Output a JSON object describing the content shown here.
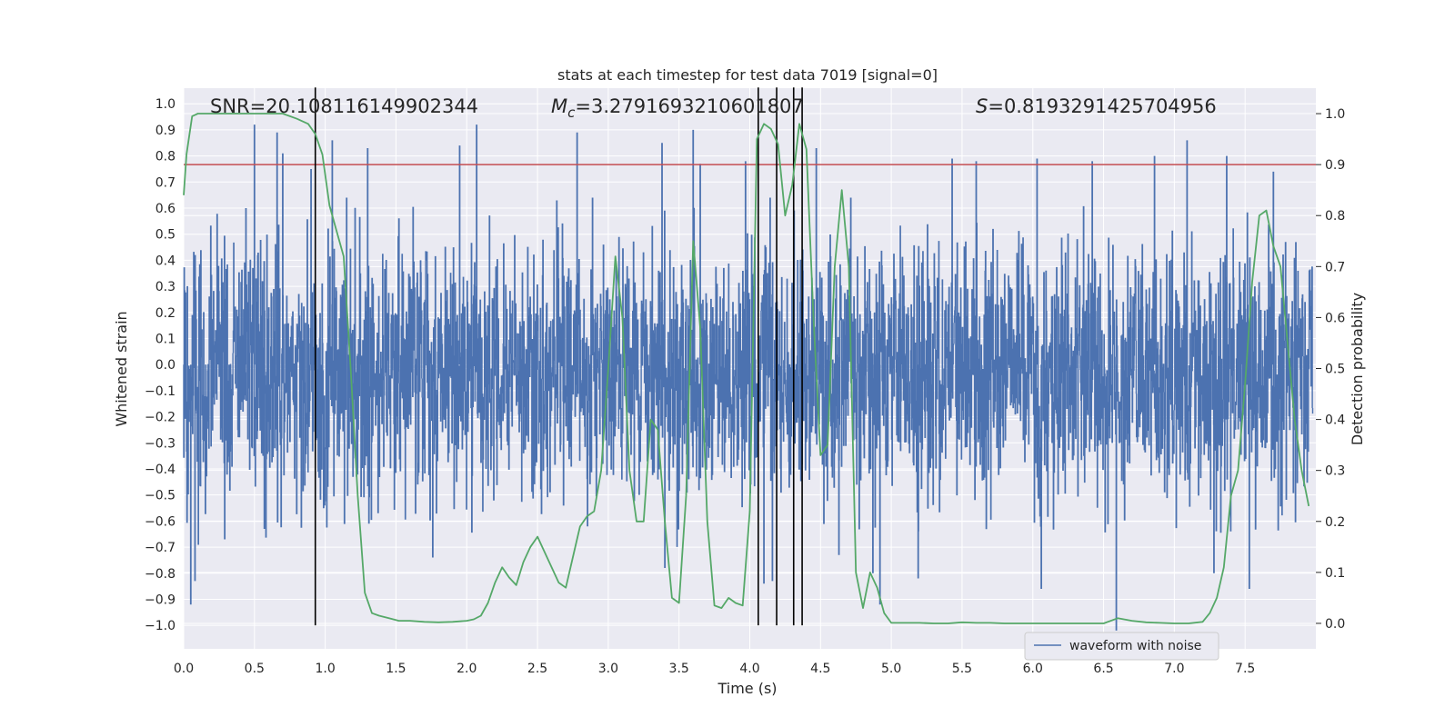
{
  "chart_data": {
    "type": "line",
    "title": "stats at each timestep for test data 7019 [signal=0]",
    "xlabel": "Time (s)",
    "ylabel": "Whitened strain",
    "y2label": "Detection probability",
    "xlim": [
      0,
      8.0
    ],
    "ylim": [
      -1.09,
      1.06
    ],
    "y2lim": [
      -0.05,
      1.05
    ],
    "xticks": [
      0.0,
      0.5,
      1.0,
      1.5,
      2.0,
      2.5,
      3.0,
      3.5,
      4.0,
      4.5,
      5.0,
      5.5,
      6.0,
      6.5,
      7.0,
      7.5
    ],
    "xtick_labels": [
      "0.0",
      "0.5",
      "1.0",
      "1.5",
      "2.0",
      "2.5",
      "3.0",
      "3.5",
      "4.0",
      "4.5",
      "5.0",
      "5.5",
      "6.0",
      "6.5",
      "7.0",
      "7.5"
    ],
    "yticks": [
      1.0,
      0.9,
      0.8,
      0.7,
      0.6,
      0.5,
      0.4,
      0.3,
      0.2,
      0.1,
      0.0,
      -0.1,
      -0.2,
      -0.3,
      -0.4,
      -0.5,
      -0.6,
      -0.7,
      -0.8,
      -0.9,
      -1.0
    ],
    "ytick_labels": [
      "1.0",
      "0.9",
      "0.8",
      "0.7",
      "0.6",
      "0.5",
      "0.4",
      "0.3",
      "0.2",
      "0.1",
      "0.0",
      "−0.1",
      "−0.2",
      "−0.3",
      "−0.4",
      "−0.5",
      "−0.6",
      "−0.7",
      "−0.8",
      "−0.9",
      "−1.0"
    ],
    "y2ticks": [
      1.0,
      0.9,
      0.8,
      0.7,
      0.6,
      0.5,
      0.4,
      0.3,
      0.2,
      0.1,
      0.0
    ],
    "y2tick_labels": [
      "1.0",
      "0.9",
      "0.8",
      "0.7",
      "0.6",
      "0.5",
      "0.4",
      "0.3",
      "0.2",
      "0.1",
      "0.0"
    ],
    "grid": true,
    "legend": {
      "position": "lower-right",
      "entries": [
        {
          "label": "waveform with noise",
          "color": "#4c72b0"
        }
      ]
    },
    "annotations": {
      "snr_text": "SNR=20.108116149902344",
      "mc_symbol": "M",
      "mc_sub": "c",
      "mc_text": "=3.2791693210601807",
      "s_symbol": "S",
      "s_text": "=0.8193291425704956"
    },
    "threshold": {
      "value": 0.9,
      "axis": "right",
      "color": "#c44e52"
    },
    "detection_times": [
      0.93,
      4.06,
      4.19,
      4.31,
      4.37
    ],
    "colors": {
      "waveform": "#4c72b0",
      "probability": "#55a868",
      "threshold": "#c44e52",
      "detection": "#000000",
      "axes_bg": "#eaeaf2",
      "grid": "#ffffff"
    },
    "series": [
      {
        "name": "waveform with noise",
        "axis": "left",
        "sample_step": 0.0025,
        "core_envelope": [
          -0.42,
          0.36
        ],
        "peak_spikes": [
          [
            0.05,
            -0.92
          ],
          [
            0.08,
            -0.83
          ],
          [
            0.29,
            -0.67
          ],
          [
            0.44,
            0.6
          ],
          [
            0.5,
            0.92
          ],
          [
            0.57,
            -0.63
          ],
          [
            0.66,
            0.89
          ],
          [
            0.7,
            0.81
          ],
          [
            0.9,
            0.75
          ],
          [
            1.05,
            0.86
          ],
          [
            1.3,
            0.83
          ],
          [
            1.76,
            -0.74
          ],
          [
            1.95,
            0.84
          ],
          [
            2.07,
            0.92
          ],
          [
            2.78,
            0.89
          ],
          [
            3.38,
            0.85
          ],
          [
            3.4,
            -0.78
          ],
          [
            3.6,
            0.9
          ],
          [
            3.65,
            0.77
          ],
          [
            3.97,
            0.78
          ],
          [
            4.1,
            -0.84
          ],
          [
            4.16,
            -0.83
          ],
          [
            4.47,
            0.83
          ],
          [
            4.63,
            -0.73
          ],
          [
            4.87,
            -0.8
          ],
          [
            4.92,
            -0.92
          ],
          [
            5.19,
            -0.82
          ],
          [
            5.43,
            0.79
          ],
          [
            5.6,
            0.78
          ],
          [
            6.03,
            0.79
          ],
          [
            6.06,
            -0.86
          ],
          [
            6.42,
            0.78
          ],
          [
            6.59,
            -1.02
          ],
          [
            6.86,
            0.8
          ],
          [
            7.09,
            0.86
          ],
          [
            7.28,
            -0.8
          ],
          [
            7.37,
            0.8
          ],
          [
            7.53,
            -0.86
          ],
          [
            7.7,
            0.74
          ]
        ]
      },
      {
        "name": "",
        "axis": "right",
        "x": [
          0.0,
          0.02,
          0.06,
          0.1,
          0.15,
          0.2,
          0.3,
          0.4,
          0.5,
          0.6,
          0.7,
          0.8,
          0.88,
          0.93,
          0.98,
          1.03,
          1.08,
          1.13,
          1.18,
          1.23,
          1.28,
          1.33,
          1.38,
          1.45,
          1.52,
          1.6,
          1.7,
          1.8,
          1.9,
          2.0,
          2.05,
          2.1,
          2.15,
          2.2,
          2.25,
          2.3,
          2.35,
          2.4,
          2.45,
          2.5,
          2.55,
          2.6,
          2.65,
          2.7,
          2.75,
          2.8,
          2.85,
          2.9,
          2.95,
          3.0,
          3.05,
          3.1,
          3.15,
          3.2,
          3.25,
          3.3,
          3.35,
          3.4,
          3.45,
          3.5,
          3.55,
          3.6,
          3.65,
          3.7,
          3.75,
          3.8,
          3.85,
          3.9,
          3.95,
          4.0,
          4.05,
          4.1,
          4.15,
          4.2,
          4.25,
          4.3,
          4.35,
          4.4,
          4.45,
          4.5,
          4.55,
          4.6,
          4.65,
          4.7,
          4.75,
          4.8,
          4.85,
          4.9,
          4.95,
          5.0,
          5.1,
          5.2,
          5.3,
          5.4,
          5.5,
          5.6,
          5.7,
          5.8,
          5.9,
          6.0,
          6.1,
          6.2,
          6.3,
          6.4,
          6.5,
          6.6,
          6.7,
          6.8,
          6.9,
          7.0,
          7.1,
          7.2,
          7.25,
          7.3,
          7.35,
          7.4,
          7.45,
          7.5,
          7.55,
          7.6,
          7.65,
          7.7,
          7.75,
          7.8,
          7.85,
          7.9,
          7.95
        ],
        "values": [
          0.84,
          0.92,
          0.995,
          1.0,
          1.0,
          1.0,
          1.0,
          1.0,
          1.0,
          1.0,
          1.0,
          0.99,
          0.98,
          0.96,
          0.92,
          0.82,
          0.77,
          0.72,
          0.5,
          0.25,
          0.06,
          0.02,
          0.015,
          0.01,
          0.005,
          0.005,
          0.003,
          0.002,
          0.003,
          0.005,
          0.008,
          0.015,
          0.04,
          0.08,
          0.11,
          0.09,
          0.075,
          0.12,
          0.15,
          0.17,
          0.14,
          0.11,
          0.08,
          0.07,
          0.13,
          0.19,
          0.21,
          0.22,
          0.3,
          0.5,
          0.72,
          0.6,
          0.3,
          0.2,
          0.2,
          0.4,
          0.38,
          0.2,
          0.05,
          0.04,
          0.25,
          0.75,
          0.58,
          0.2,
          0.035,
          0.03,
          0.05,
          0.04,
          0.035,
          0.22,
          0.95,
          0.98,
          0.97,
          0.94,
          0.8,
          0.86,
          0.98,
          0.93,
          0.6,
          0.33,
          0.35,
          0.7,
          0.85,
          0.7,
          0.1,
          0.03,
          0.1,
          0.07,
          0.02,
          0.001,
          0.001,
          0.001,
          0.0,
          0.0,
          0.002,
          0.001,
          0.001,
          0.0,
          0.0,
          0.0,
          0.0,
          0.0,
          0.0,
          0.0,
          0.0,
          0.01,
          0.005,
          0.002,
          0.001,
          0.0,
          0.0,
          0.003,
          0.02,
          0.05,
          0.11,
          0.25,
          0.3,
          0.47,
          0.67,
          0.8,
          0.81,
          0.74,
          0.7,
          0.55,
          0.4,
          0.3,
          0.23
        ]
      }
    ]
  }
}
